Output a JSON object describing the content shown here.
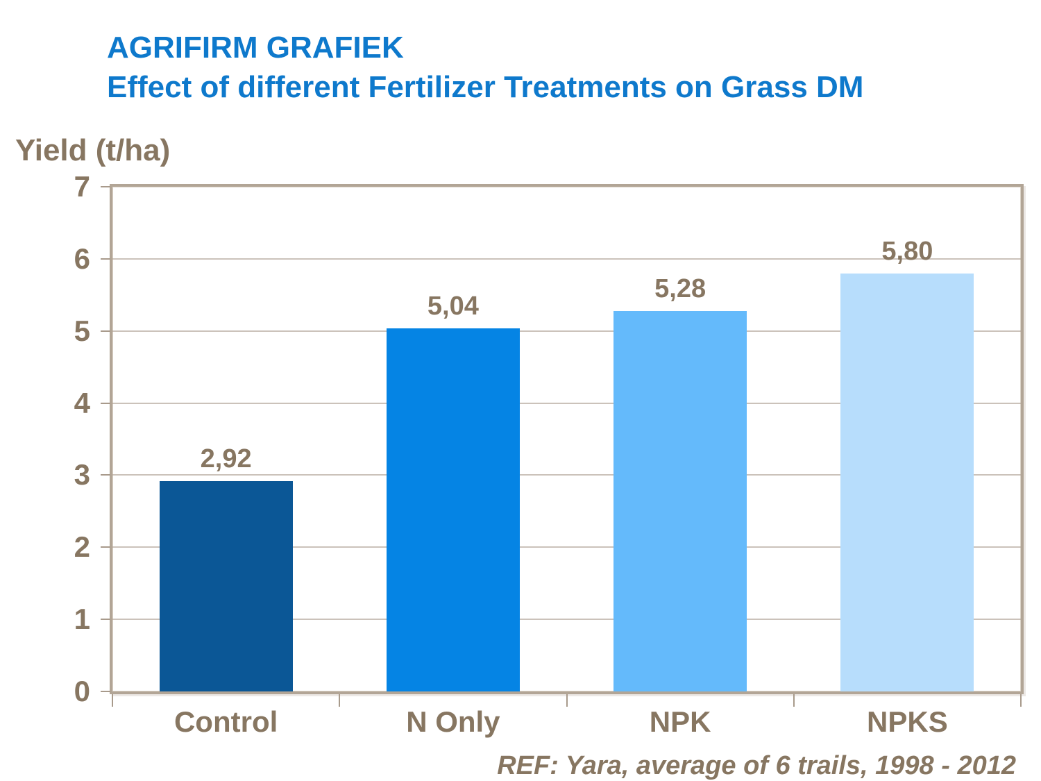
{
  "slide": {
    "title_line1": "AGRIFIRM GRAFIEK",
    "title_line2": "Effect of different Fertilizer Treatments on Grass DM",
    "ref_note": "REF: Yara, average of 6 trails, 1998 - 2012"
  },
  "colors": {
    "title_blue": "#0E79CC",
    "text_brown": "#877661",
    "grid_line": "#AFA295",
    "frame_border": "#B2A596",
    "bar_colors": [
      "#0B5796",
      "#0584E4",
      "#64BAFB",
      "#B7DDFC"
    ]
  },
  "chart_data": {
    "type": "bar",
    "title": "AGRIFIRM GRAFIEK — Effect of different Fertilizer Treatments on Grass DM",
    "ylabel": "Yield (t/ha)",
    "xlabel": "",
    "categories": [
      "Control",
      "N Only",
      "NPK",
      "NPKS"
    ],
    "values": [
      2.92,
      5.04,
      5.28,
      5.8
    ],
    "value_labels": [
      "2,92",
      "5,04",
      "5,28",
      "5,80"
    ],
    "yticks": [
      0,
      1,
      2,
      3,
      4,
      5,
      6,
      7
    ],
    "ylim": [
      0,
      7
    ],
    "grid": true,
    "legend": false,
    "annotation": "REF: Yara, average of 6 trails, 1998 - 2012"
  }
}
